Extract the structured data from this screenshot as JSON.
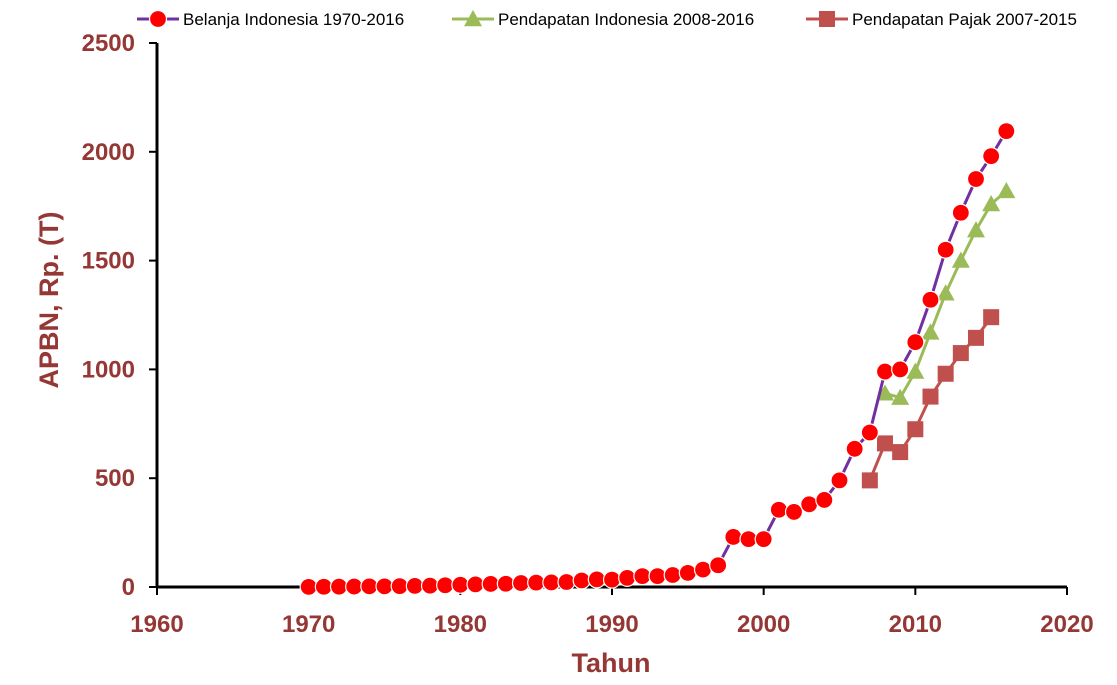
{
  "chart_data": {
    "type": "line",
    "xlabel": "Tahun",
    "ylabel": "APBN, Rp. (T)",
    "xlim": [
      1960,
      2020
    ],
    "ylim": [
      0,
      2500
    ],
    "xticks": [
      1960,
      1970,
      1980,
      1990,
      2000,
      2010,
      2020
    ],
    "yticks": [
      0,
      500,
      1000,
      1500,
      2000,
      2500
    ],
    "grid": false,
    "legend_position": "top",
    "series": [
      {
        "name": "Belanja Indonesia 1970-2016",
        "color": "#7030a0",
        "marker": "circle",
        "marker_color": "#ff0000",
        "x": [
          1970,
          1971,
          1972,
          1973,
          1974,
          1975,
          1976,
          1977,
          1978,
          1979,
          1980,
          1981,
          1982,
          1983,
          1984,
          1985,
          1986,
          1987,
          1988,
          1989,
          1990,
          1991,
          1992,
          1993,
          1994,
          1995,
          1996,
          1997,
          1998,
          1999,
          2000,
          2001,
          2002,
          2003,
          2004,
          2005,
          2006,
          2007,
          2008,
          2009,
          2010,
          2011,
          2012,
          2013,
          2014,
          2015,
          2016
        ],
        "y": [
          0.5,
          1,
          1.5,
          2,
          3,
          3,
          4,
          5,
          6,
          8,
          10,
          12,
          14,
          15,
          18,
          20,
          21,
          23,
          30,
          35,
          34,
          42,
          50,
          50,
          55,
          65,
          80,
          100,
          230,
          220,
          220,
          355,
          345,
          380,
          400,
          490,
          635,
          710,
          990,
          1000,
          1125,
          1320,
          1550,
          1720,
          1875,
          1980,
          2095
        ]
      },
      {
        "name": "Pendapatan Indonesia 2008-2016",
        "color": "#9bbb59",
        "marker": "triangle",
        "marker_color": "#9bbb59",
        "x": [
          2008,
          2009,
          2010,
          2011,
          2012,
          2013,
          2014,
          2015,
          2016
        ],
        "y": [
          890,
          870,
          990,
          1170,
          1350,
          1500,
          1640,
          1760,
          1820
        ]
      },
      {
        "name": "Pendapatan Pajak 2007-2015",
        "color": "#c0504d",
        "marker": "square",
        "marker_color": "#c0504d",
        "x": [
          2007,
          2008,
          2009,
          2010,
          2011,
          2012,
          2013,
          2014,
          2015
        ],
        "y": [
          490,
          660,
          620,
          725,
          875,
          980,
          1075,
          1145,
          1240
        ]
      }
    ]
  }
}
